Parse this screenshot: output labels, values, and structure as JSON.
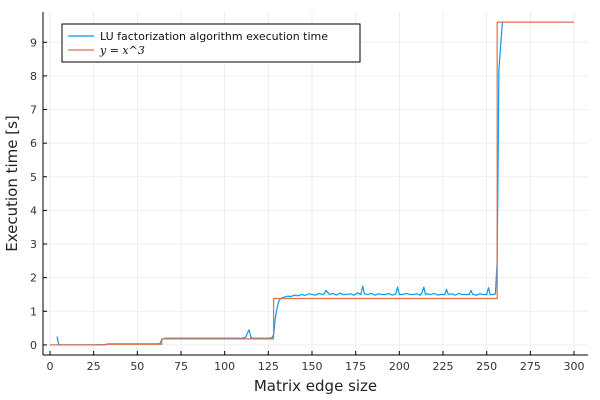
{
  "chart_data": {
    "type": "line",
    "xlabel": "Matrix edge size",
    "ylabel": "Execution time [s]",
    "xlim": [
      -4,
      308
    ],
    "ylim": [
      -0.3,
      9.9
    ],
    "xticks": [
      0,
      25,
      50,
      75,
      100,
      125,
      150,
      175,
      200,
      225,
      250,
      275,
      300
    ],
    "yticks": [
      0,
      1,
      2,
      3,
      4,
      5,
      6,
      7,
      8,
      9
    ],
    "grid": true,
    "legend_position": "top-left",
    "series": [
      {
        "name": "LU factorization algorithm execution time",
        "color": "#009AFA",
        "x": [
          4,
          5,
          6,
          8,
          10,
          15,
          20,
          25,
          30,
          32,
          33,
          35,
          40,
          45,
          50,
          55,
          60,
          62,
          63,
          64,
          65,
          66,
          68,
          70,
          75,
          80,
          85,
          90,
          95,
          100,
          105,
          110,
          112,
          113,
          114,
          115,
          116,
          120,
          125,
          127,
          128,
          129,
          130,
          131,
          132,
          134,
          136,
          138,
          140,
          142,
          144,
          146,
          148,
          150,
          152,
          154,
          156,
          157,
          158,
          160,
          162,
          164,
          166,
          168,
          170,
          172,
          174,
          176,
          178,
          179,
          180,
          182,
          184,
          186,
          188,
          190,
          192,
          194,
          196,
          198,
          199,
          200,
          202,
          204,
          206,
          208,
          210,
          212,
          213,
          214,
          215,
          216,
          218,
          220,
          222,
          224,
          226,
          227,
          228,
          230,
          232,
          234,
          236,
          238,
          240,
          241,
          242,
          244,
          246,
          248,
          250,
          251,
          252,
          254,
          255,
          256,
          257,
          258,
          259
        ],
        "y": [
          0.25,
          0.02,
          0.0,
          0.0,
          0.0,
          0.0,
          0.0,
          0.0,
          0.01,
          0.01,
          0.03,
          0.03,
          0.03,
          0.03,
          0.03,
          0.03,
          0.03,
          0.03,
          0.04,
          0.16,
          0.18,
          0.2,
          0.2,
          0.2,
          0.2,
          0.2,
          0.2,
          0.2,
          0.2,
          0.2,
          0.2,
          0.2,
          0.22,
          0.35,
          0.45,
          0.22,
          0.2,
          0.2,
          0.2,
          0.21,
          0.3,
          0.8,
          1.1,
          1.3,
          1.38,
          1.42,
          1.45,
          1.44,
          1.48,
          1.46,
          1.5,
          1.47,
          1.52,
          1.5,
          1.48,
          1.53,
          1.5,
          1.52,
          1.62,
          1.5,
          1.53,
          1.48,
          1.54,
          1.5,
          1.5,
          1.52,
          1.48,
          1.55,
          1.5,
          1.75,
          1.52,
          1.5,
          1.53,
          1.48,
          1.52,
          1.5,
          1.5,
          1.53,
          1.48,
          1.52,
          1.72,
          1.5,
          1.5,
          1.53,
          1.5,
          1.5,
          1.52,
          1.48,
          1.55,
          1.72,
          1.5,
          1.52,
          1.5,
          1.53,
          1.48,
          1.5,
          1.5,
          1.65,
          1.5,
          1.52,
          1.48,
          1.53,
          1.5,
          1.5,
          1.5,
          1.62,
          1.5,
          1.48,
          1.52,
          1.5,
          1.5,
          1.7,
          1.5,
          1.5,
          1.52,
          2.5,
          8.2,
          8.9,
          9.6
        ]
      },
      {
        "name": "y = x^3",
        "color": "#E26F46",
        "x": [
          0,
          32,
          32,
          64,
          64,
          128,
          128,
          256,
          256,
          300
        ],
        "y": [
          0,
          0,
          0.02,
          0.02,
          0.18,
          0.18,
          1.38,
          1.38,
          9.6,
          9.6
        ]
      }
    ]
  }
}
